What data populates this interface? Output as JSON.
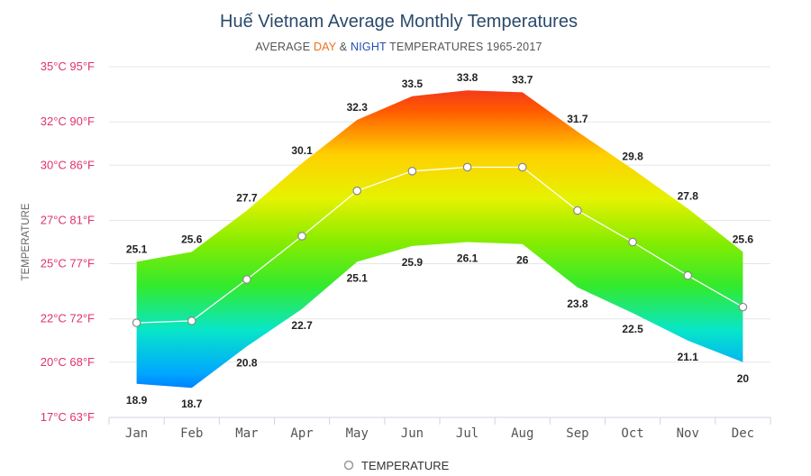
{
  "chart_data": {
    "type": "area",
    "title": "Huế Vietnam Average Monthly Temperatures",
    "subtitle": {
      "prefix": "AVERAGE ",
      "day": "DAY",
      "amp": " & ",
      "night": "NIGHT",
      "suffix": " TEMPERATURES 1965-2017"
    },
    "ylabel": "TEMPERATURE",
    "categories": [
      "Jan",
      "Feb",
      "Mar",
      "Apr",
      "May",
      "Jun",
      "Jul",
      "Aug",
      "Sep",
      "Oct",
      "Nov",
      "Dec"
    ],
    "y_ticks": [
      {
        "value": 17.2,
        "label": "17°C 63°F"
      },
      {
        "value": 20.0,
        "label": "20°C 68°F"
      },
      {
        "value": 22.2,
        "label": "22°C 72°F"
      },
      {
        "value": 25.0,
        "label": "25°C 77°F"
      },
      {
        "value": 27.2,
        "label": "27°C 81°F"
      },
      {
        "value": 30.0,
        "label": "30°C 86°F"
      },
      {
        "value": 32.2,
        "label": "32°C 90°F"
      },
      {
        "value": 35.0,
        "label": "35°C 95°F"
      }
    ],
    "ylim": [
      17.2,
      35.0
    ],
    "series": [
      {
        "key": "day",
        "values": [
          25.1,
          25.6,
          27.7,
          30.1,
          32.3,
          33.5,
          33.8,
          33.7,
          31.7,
          29.8,
          27.8,
          25.6
        ]
      },
      {
        "key": "night",
        "values": [
          18.9,
          18.7,
          20.8,
          22.7,
          25.1,
          25.9,
          26.1,
          26.0,
          23.8,
          22.5,
          21.1,
          20.0
        ]
      },
      {
        "name": "TEMPERATURE",
        "values": [
          22.0,
          22.1,
          24.2,
          26.4,
          28.7,
          29.7,
          29.9,
          29.9,
          27.7,
          26.1,
          24.4,
          22.8
        ]
      }
    ],
    "legend": {
      "label": "TEMPERATURE",
      "position": "bottom-center"
    },
    "grid": true,
    "colors": {
      "axis_label": "#e0336c",
      "title": "#2b4a6b",
      "day_word": "#e8731c",
      "night_word": "#1f4fb5",
      "gradient": [
        "#e8153a",
        "#ff5a00",
        "#ffd000",
        "#e6f200",
        "#86ec00",
        "#33ea2c",
        "#08e6c8",
        "#00a6ff",
        "#0037ff"
      ]
    }
  }
}
